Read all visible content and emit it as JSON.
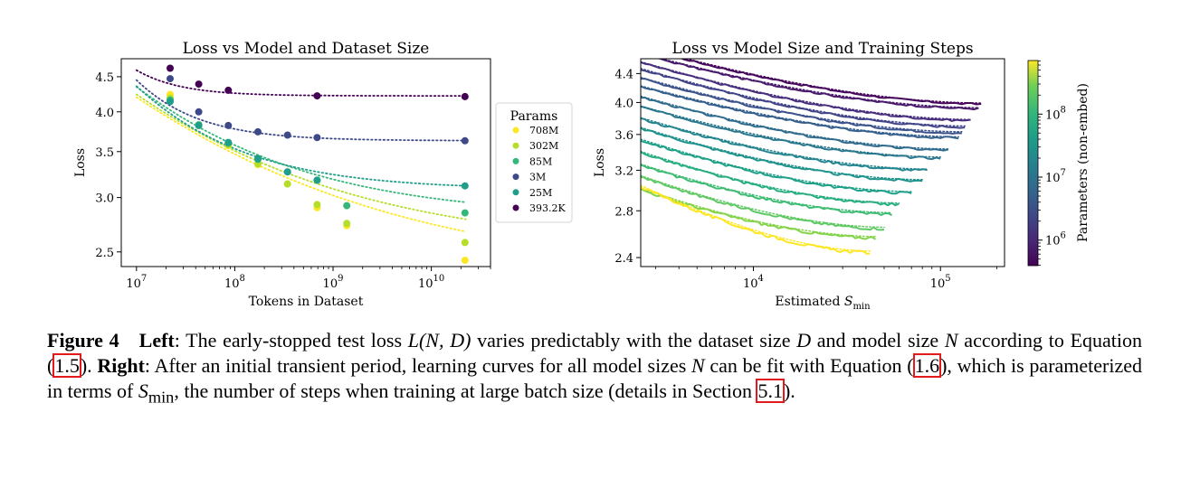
{
  "chart_data": [
    {
      "type": "scatter",
      "title": "Loss vs Model and Dataset Size",
      "xlabel": "Tokens in Dataset",
      "ylabel": "Loss",
      "xscale": "log",
      "yscale": "log",
      "xlim": [
        7000000,
        40000000000
      ],
      "ylim": [
        2.38,
        4.78
      ],
      "xticks": [
        {
          "value": 10000000,
          "label": "10^7",
          "base": "10",
          "exp": "7"
        },
        {
          "value": 100000000,
          "label": "10^8",
          "base": "10",
          "exp": "8"
        },
        {
          "value": 1000000000,
          "label": "10^9",
          "base": "10",
          "exp": "9"
        },
        {
          "value": 10000000000,
          "label": "10^10",
          "base": "10",
          "exp": "10"
        }
      ],
      "yticks": [
        {
          "value": 2.5,
          "label": "2.5"
        },
        {
          "value": 3.0,
          "label": "3.0"
        },
        {
          "value": 3.5,
          "label": "3.5"
        },
        {
          "value": 4.0,
          "label": "4.0"
        },
        {
          "value": 4.5,
          "label": "4.5"
        }
      ],
      "legend": {
        "title": "Params",
        "position": "right, outside"
      },
      "x": [
        22000000,
        43000000,
        86000000,
        172000000,
        344000000,
        688000000,
        1380000000,
        22000000000
      ],
      "series": [
        {
          "name": "708M",
          "color": "#fde725",
          "points": [
            [
              22000000,
              4.24
            ],
            [
              43000000,
              3.83
            ],
            [
              86000000,
              3.57
            ],
            [
              172000000,
              3.35
            ],
            [
              344000000,
              3.14
            ],
            [
              688000000,
              2.9
            ],
            [
              1380000000,
              2.73
            ],
            [
              22000000000,
              2.43
            ]
          ],
          "fit": {
            "asymptote": 2.3,
            "a": 1.9,
            "b": -0.21
          }
        },
        {
          "name": "302M",
          "color": "#b5de2b",
          "points": [
            [
              22000000,
              4.19
            ],
            [
              43000000,
              3.82
            ],
            [
              86000000,
              3.58
            ],
            [
              172000000,
              3.36
            ],
            [
              344000000,
              3.14
            ],
            [
              688000000,
              2.93
            ],
            [
              1380000000,
              2.75
            ],
            [
              22000000000,
              2.58
            ]
          ],
          "fit": {
            "asymptote": 2.52,
            "a": 1.72,
            "b": -0.24
          }
        },
        {
          "name": "85M",
          "color": "#35b779",
          "points": [
            [
              22000000,
              4.16
            ],
            [
              43000000,
              3.83
            ],
            [
              86000000,
              3.6
            ],
            [
              172000000,
              3.41
            ],
            [
              344000000,
              3.27
            ],
            [
              688000000,
              3.18
            ],
            [
              1380000000,
              2.92
            ],
            [
              22000000000,
              2.85
            ]
          ],
          "fit": {
            "asymptote": 2.8,
            "a": 1.55,
            "b": -0.3
          }
        },
        {
          "name": "3M",
          "color": "#3e4989",
          "points": [
            [
              22000000,
              4.47
            ],
            [
              43000000,
              4.0
            ],
            [
              86000000,
              3.82
            ],
            [
              172000000,
              3.74
            ],
            [
              344000000,
              3.7
            ],
            [
              688000000,
              3.67
            ],
            [
              22000000000,
              3.63
            ]
          ],
          "fit": {
            "asymptote": 3.63,
            "a": 0.82,
            "b": -0.75
          }
        },
        {
          "name": "25M",
          "color": "#1f9e89",
          "points": [
            [
              22000000,
              4.14
            ],
            [
              43000000,
              3.82
            ],
            [
              86000000,
              3.61
            ],
            [
              172000000,
              3.42
            ],
            [
              344000000,
              3.27
            ],
            [
              688000000,
              3.18
            ],
            [
              22000000000,
              3.12
            ]
          ],
          "fit": {
            "asymptote": 3.08,
            "a": 1.28,
            "b": -0.45
          }
        },
        {
          "name": "393.2K",
          "color": "#440154",
          "points": [
            [
              22000000,
              4.63
            ],
            [
              43000000,
              4.39
            ],
            [
              86000000,
              4.3
            ],
            [
              688000000,
              4.22
            ],
            [
              22000000000,
              4.21
            ]
          ],
          "fit": {
            "asymptote": 4.22,
            "a": 0.38,
            "b": -1.0
          }
        }
      ]
    },
    {
      "type": "line",
      "title": "Loss vs Model Size and Training Steps",
      "xlabel": "Estimated S_min",
      "xlabel_main": "Estimated ",
      "xlabel_sym": "S",
      "xlabel_sub": "min",
      "ylabel": "Loss",
      "xscale": "log",
      "yscale": "log",
      "xlim": [
        2500,
        220000
      ],
      "ylim": [
        2.33,
        4.62
      ],
      "xticks": [
        {
          "value": 10000,
          "label": "10^4",
          "base": "10",
          "exp": "4"
        },
        {
          "value": 100000,
          "label": "10^5",
          "base": "10",
          "exp": "5"
        }
      ],
      "yticks": [
        {
          "value": 2.4,
          "label": "2.4"
        },
        {
          "value": 2.8,
          "label": "2.8"
        },
        {
          "value": 3.2,
          "label": "3.2"
        },
        {
          "value": 3.6,
          "label": "3.6"
        },
        {
          "value": 4.0,
          "label": "4.0"
        },
        {
          "value": 4.4,
          "label": "4.4"
        }
      ],
      "curves": [
        {
          "params": 393200,
          "color": "#46085c",
          "start_loss": 4.78,
          "end_loss": 3.98,
          "end_steps": 165000
        },
        {
          "params": 800000,
          "color": "#481a6c",
          "start_loss": 4.68,
          "end_loss": 3.92,
          "end_steps": 160000
        },
        {
          "params": 1500000,
          "color": "#472f7d",
          "start_loss": 4.55,
          "end_loss": 3.77,
          "end_steps": 145000
        },
        {
          "params": 2500000,
          "color": "#414487",
          "start_loss": 4.45,
          "end_loss": 3.69,
          "end_steps": 135000
        },
        {
          "params": 3000000,
          "color": "#3b528b",
          "start_loss": 4.32,
          "end_loss": 3.62,
          "end_steps": 130000
        },
        {
          "params": 5000000,
          "color": "#355f8d",
          "start_loss": 4.2,
          "end_loss": 3.56,
          "end_steps": 125000
        },
        {
          "params": 8000000,
          "color": "#2f6c8e",
          "start_loss": 4.06,
          "end_loss": 3.42,
          "end_steps": 110000
        },
        {
          "params": 15000000,
          "color": "#2a788e",
          "start_loss": 3.93,
          "end_loss": 3.33,
          "end_steps": 100000
        },
        {
          "params": 25000000,
          "color": "#25858e",
          "start_loss": 3.78,
          "end_loss": 3.2,
          "end_steps": 85000
        },
        {
          "params": 40000000,
          "color": "#1f928c",
          "start_loss": 3.66,
          "end_loss": 3.09,
          "end_steps": 80000
        },
        {
          "params": 85000000,
          "color": "#1fa088",
          "start_loss": 3.52,
          "end_loss": 2.97,
          "end_steps": 70000
        },
        {
          "params": 120000000,
          "color": "#28ae80",
          "start_loss": 3.38,
          "end_loss": 2.86,
          "end_steps": 60000
        },
        {
          "params": 200000000,
          "color": "#3fbc73",
          "start_loss": 3.24,
          "end_loss": 2.77,
          "end_steps": 55000
        },
        {
          "params": 302000000,
          "color": "#5ec962",
          "start_loss": 3.12,
          "end_loss": 2.64,
          "end_steps": 50000
        },
        {
          "params": 400000000,
          "color": "#84d44b",
          "start_loss": 2.99,
          "end_loss": 2.56,
          "end_steps": 45000
        },
        {
          "params": 708000000,
          "color": "#fde725",
          "start_loss": 3.02,
          "end_loss": 2.44,
          "end_steps": 42000
        }
      ],
      "colorbar": {
        "label": "Parameters (non-embed)",
        "scale": "log",
        "range": [
          393200,
          708000000
        ],
        "colormap": "viridis",
        "ticks": [
          {
            "value": 1000000,
            "base": "10",
            "exp": "6"
          },
          {
            "value": 10000000,
            "base": "10",
            "exp": "7"
          },
          {
            "value": 100000000,
            "base": "10",
            "exp": "8"
          }
        ]
      }
    }
  ],
  "caption": {
    "figure_number": "Figure 4",
    "left_label": "Left",
    "text_1": ": The early-stopped test loss ",
    "math_1": "L(N, D)",
    "text_2": " varies predictably with the dataset size ",
    "math_2": "D",
    "text_3": " and model size ",
    "math_3": "N",
    "text_4": " according to Equation (",
    "ref_1": "1.5",
    "text_5": "). ",
    "right_label": "Right",
    "text_6": ": After an initial transient period, learning curves for all model sizes ",
    "math_4": "N",
    "text_7": " can be fit with Equation (",
    "ref_2": "1.6",
    "text_8": "), which is parameterized in terms of ",
    "math_5": "S",
    "math_5_sub": "min",
    "text_9": ", the number of steps when training at large batch size (details in Section ",
    "ref_3": "5.1",
    "text_10": ")."
  }
}
